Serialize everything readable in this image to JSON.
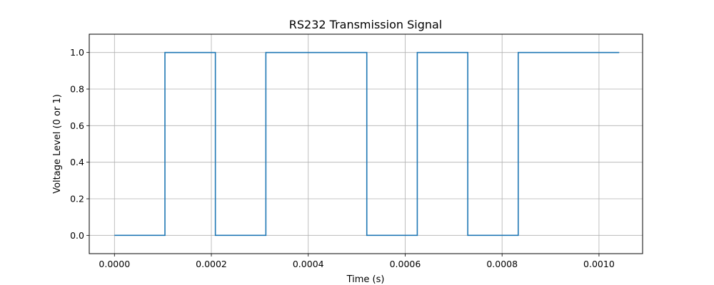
{
  "chart_data": {
    "type": "line",
    "title": "RS232 Transmission Signal",
    "xlabel": "Time (s)",
    "ylabel": "Voltage Level (0 or 1)",
    "xlim": [
      -5.2e-05,
      0.00109
    ],
    "ylim": [
      -0.1,
      1.1
    ],
    "grid": true,
    "x_ticks": [
      0.0,
      0.0002,
      0.0004,
      0.0006,
      0.0008,
      0.001
    ],
    "x_tick_labels": [
      "0.0000",
      "0.0002",
      "0.0004",
      "0.0006",
      "0.0008",
      "0.0010"
    ],
    "y_ticks": [
      0.0,
      0.2,
      0.4,
      0.6,
      0.8,
      1.0
    ],
    "y_tick_labels": [
      "0.0",
      "0.2",
      "0.4",
      "0.6",
      "0.8",
      "1.0"
    ],
    "series": [
      {
        "color": "#1f77b4",
        "step": "post",
        "x": [
          0.0,
          0.0001042,
          0.0002083,
          0.0003125,
          0.0005208,
          0.000625,
          0.0007292,
          0.0008333,
          0.0010417
        ],
        "y": [
          0,
          1,
          0,
          1,
          0,
          1,
          0,
          1,
          1
        ]
      }
    ]
  }
}
